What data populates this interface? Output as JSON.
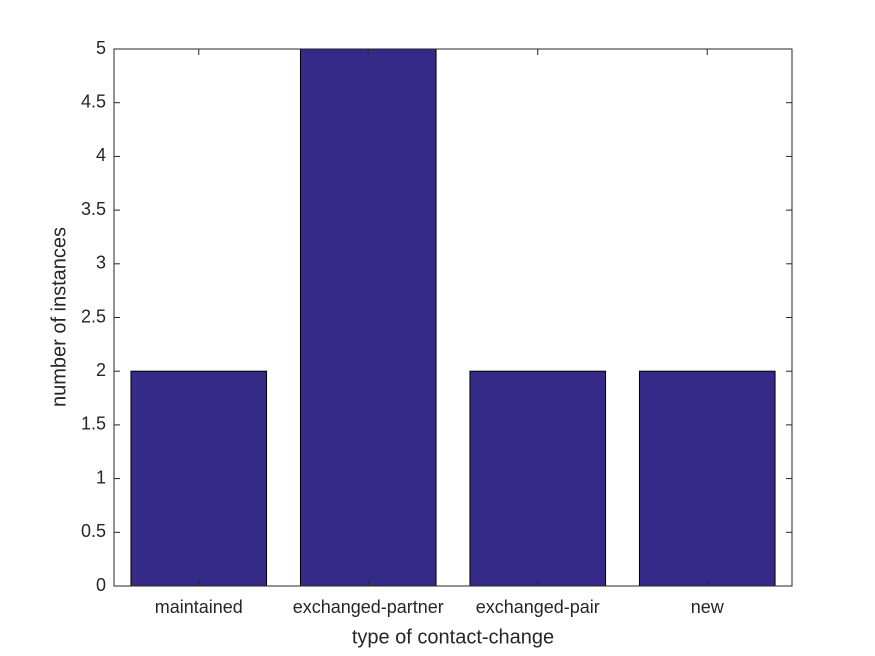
{
  "chart_data": {
    "type": "bar",
    "x_label": "type of contact-change",
    "y_label": "number of instances",
    "categories": [
      "maintained",
      "exchanged-partner",
      "exchanged-pair",
      "new"
    ],
    "values": [
      2,
      5,
      2,
      2
    ],
    "color": "#352a87",
    "ylim": [
      0,
      5
    ],
    "yticks": [
      0,
      0.5,
      1,
      1.5,
      2,
      2.5,
      3,
      3.5,
      4,
      4.5,
      5
    ],
    "grid": false
  }
}
